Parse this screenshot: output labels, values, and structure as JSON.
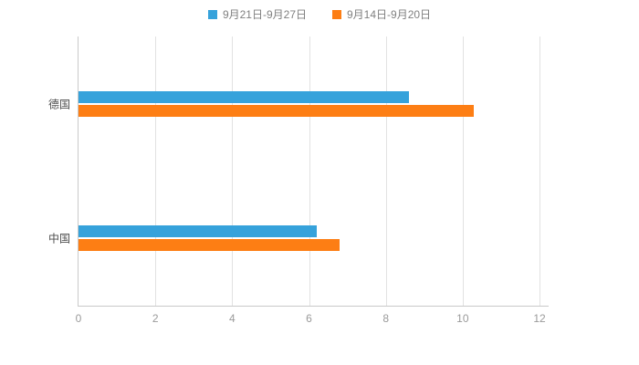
{
  "chart_data": {
    "type": "bar",
    "orientation": "horizontal",
    "title": "",
    "xlabel": "",
    "ylabel": "",
    "categories": [
      "德国",
      "中国"
    ],
    "series": [
      {
        "name": "9月21日-9月27日",
        "color": "#36A2DB",
        "values": [
          8.6,
          6.2
        ]
      },
      {
        "name": "9月14日-9月20日",
        "color": "#FD7E14",
        "values": [
          10.3,
          6.8
        ]
      }
    ],
    "xlim": [
      0,
      12
    ],
    "xticks": [
      0,
      2,
      4,
      6,
      8,
      10,
      12
    ],
    "grid": true,
    "legend_position": "top"
  },
  "colors": {
    "background": "#ffffff",
    "axis_line": "#c9c9c9",
    "gridline": "#e2e2e2",
    "tick_label": "#9a9a9a",
    "category_label": "#4d4d4d",
    "legend_label": "#808080"
  }
}
